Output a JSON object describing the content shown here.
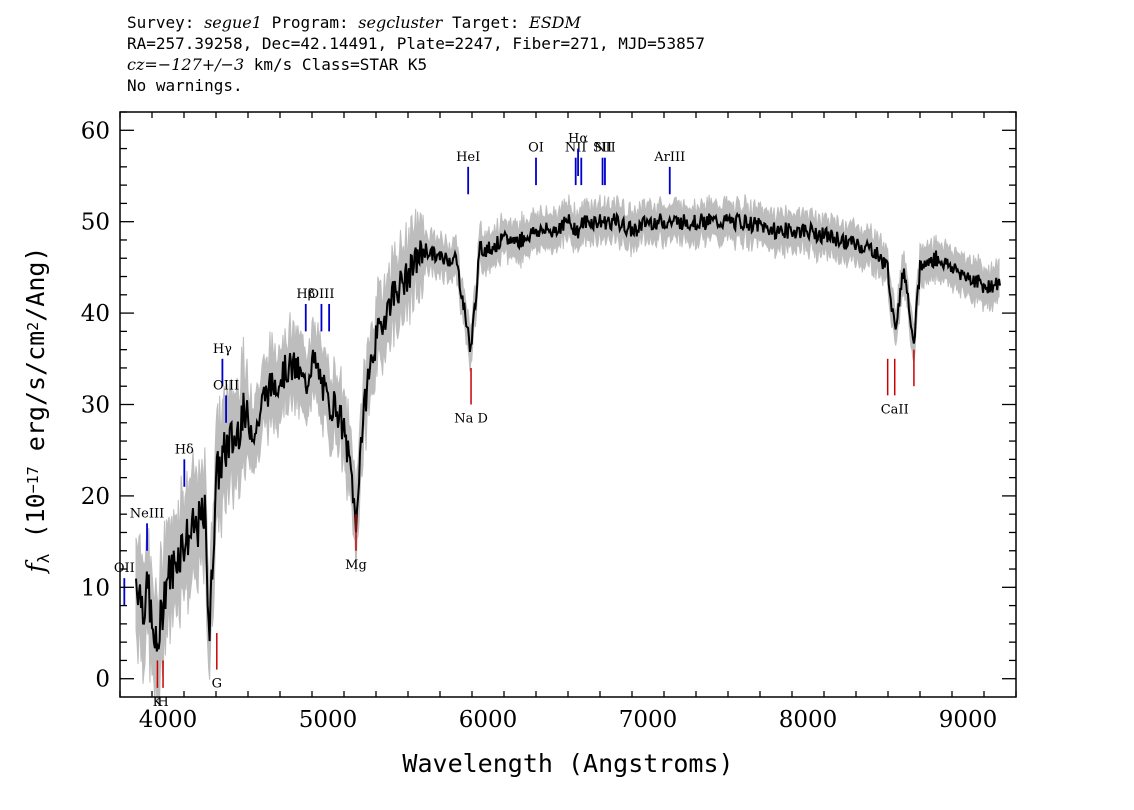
{
  "header": {
    "line1": {
      "survey_label": "Survey: ",
      "survey": "segue1",
      "program_label": " Program: ",
      "program": "segcluster",
      "target_label": " Target: ",
      "target": "ESDM"
    },
    "line2": "RA=257.39258, Dec=42.14491, Plate=2247, Fiber=271, MJD=53857",
    "line3": {
      "cz": "cz=−127+/−3",
      "rest": " km/s Class=STAR K5"
    },
    "line4": "No warnings."
  },
  "chart_data": {
    "type": "line",
    "xlabel": "Wavelength (Angstroms)",
    "ylabel": "f_λ (10^-17 erg/s/cm^2/Ang)",
    "xlim": [
      3700,
      9300
    ],
    "ylim": [
      -2,
      62
    ],
    "x_ticks": [
      4000,
      5000,
      6000,
      7000,
      8000,
      9000
    ],
    "y_ticks": [
      0,
      10,
      20,
      30,
      40,
      50,
      60
    ],
    "colors": {
      "spectrum": "#000000",
      "error": "#bdbdbd",
      "emission": "#0000cc",
      "absorption": "#cc0000"
    },
    "series": [
      {
        "x": [
          3800,
          3850,
          3880,
          3900,
          3930,
          3960,
          3990,
          4030,
          4070,
          4100,
          4150,
          4200,
          4230,
          4260,
          4300,
          4340,
          4380,
          4420,
          4460,
          4500,
          4550,
          4600,
          4650,
          4700,
          4750,
          4800,
          4861,
          4900,
          4950,
          5000,
          5050,
          5100,
          5150,
          5175,
          5200,
          5250,
          5300,
          5400,
          5500,
          5560,
          5600,
          5700,
          5800,
          5893,
          5950,
          6000,
          6100,
          6200,
          6300,
          6400,
          6500,
          6563,
          6600,
          6700,
          6800,
          6900,
          7000,
          7100,
          7200,
          7400,
          7600,
          7800,
          8000,
          8200,
          8400,
          8498,
          8542,
          8600,
          8662,
          8700,
          8800,
          8900,
          9000,
          9100,
          9200
        ],
        "y": [
          11,
          8,
          10,
          5,
          3,
          7,
          11,
          12,
          14,
          15,
          16,
          17,
          18,
          5,
          22,
          24,
          26,
          26,
          29,
          28,
          27,
          31,
          32,
          33,
          34,
          34,
          32,
          35,
          33,
          30,
          30,
          27,
          22,
          16,
          25,
          33,
          37,
          42,
          44,
          46,
          47,
          46,
          46,
          36,
          47,
          47,
          48,
          48,
          49,
          49,
          50,
          49,
          50,
          50,
          50,
          49,
          50,
          50,
          50,
          50,
          50,
          49,
          49,
          48,
          47,
          45,
          38,
          45,
          37,
          45,
          46,
          45,
          44,
          43,
          43
        ]
      }
    ],
    "emission_lines": [
      {
        "label": "OII",
        "wavelength": 3727,
        "y_top": 11,
        "y_bottom": 8
      },
      {
        "label": "NeIII",
        "wavelength": 3869,
        "y_top": 17,
        "y_bottom": 14
      },
      {
        "label": "Hδ",
        "wavelength": 4102,
        "y_top": 24,
        "y_bottom": 21
      },
      {
        "label": "Hγ",
        "wavelength": 4340,
        "y_top": 35,
        "y_bottom": 32
      },
      {
        "label": "OIII",
        "wavelength": 4363,
        "y_top": 31,
        "y_bottom": 28
      },
      {
        "label": "Hβ",
        "wavelength": 4861,
        "y_top": 41,
        "y_bottom": 38
      },
      {
        "label": "OIII",
        "wavelength": 4959,
        "y_top": 41,
        "y_bottom": 38
      },
      {
        "label": "",
        "wavelength": 5007,
        "y_top": 41,
        "y_bottom": 38
      },
      {
        "label": "HeI",
        "wavelength": 5876,
        "y_top": 56,
        "y_bottom": 53
      },
      {
        "label": "OI",
        "wavelength": 6300,
        "y_top": 57,
        "y_bottom": 54
      },
      {
        "label": "NII",
        "wavelength": 6548,
        "y_top": 57,
        "y_bottom": 54
      },
      {
        "label": "Hα",
        "wavelength": 6563,
        "y_top": 58,
        "y_bottom": 55
      },
      {
        "label": "",
        "wavelength": 6583,
        "y_top": 57,
        "y_bottom": 54
      },
      {
        "label": "SII",
        "wavelength": 6716,
        "y_top": 57,
        "y_bottom": 54
      },
      {
        "label": "NII",
        "wavelength": 6731,
        "y_top": 57,
        "y_bottom": 54
      },
      {
        "label": "ArIII",
        "wavelength": 7136,
        "y_top": 56,
        "y_bottom": 53
      }
    ],
    "absorption_lines": [
      {
        "label": "K",
        "wavelength": 3934,
        "y_top": 2,
        "y_bottom": -1
      },
      {
        "label": "H",
        "wavelength": 3969,
        "y_top": 2,
        "y_bottom": -1
      },
      {
        "label": "G",
        "wavelength": 4305,
        "y_top": 5,
        "y_bottom": 1
      },
      {
        "label": "Mg",
        "wavelength": 5175,
        "y_top": 18,
        "y_bottom": 14
      },
      {
        "label": "Na D",
        "wavelength": 5894,
        "y_top": 34,
        "y_bottom": 30
      },
      {
        "label": "",
        "wavelength": 8498,
        "y_top": 35,
        "y_bottom": 31
      },
      {
        "label": "CaII",
        "wavelength": 8542,
        "y_top": 35,
        "y_bottom": 31
      },
      {
        "label": "",
        "wavelength": 8662,
        "y_top": 36,
        "y_bottom": 32
      }
    ]
  }
}
